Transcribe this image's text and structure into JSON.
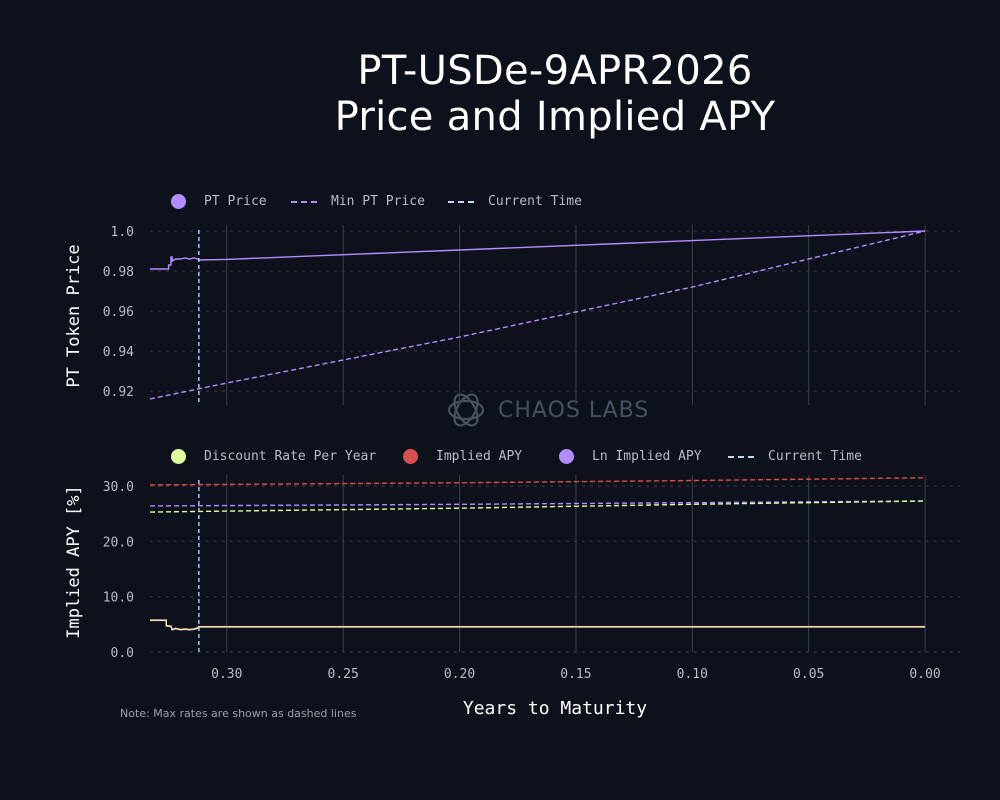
{
  "title_line1": "PT-USDe-9APR2026",
  "title_line2": "Price and Implied APY",
  "watermark": "CHAOS LABS",
  "note": "Note: Max rates are shown as dashed lines",
  "xlabel": "Years to Maturity",
  "top_legend": [
    {
      "label": "PT Price",
      "style": "dot",
      "color": "#b58cff"
    },
    {
      "label": "Min PT Price",
      "style": "dash",
      "color": "#b58cff"
    },
    {
      "label": "Current Time",
      "style": "dash",
      "color": "#c6d8ff"
    }
  ],
  "bottom_legend": [
    {
      "label": "Discount Rate Per Year",
      "style": "dot",
      "color": "#dfff9e"
    },
    {
      "label": "Implied APY",
      "style": "dot",
      "color": "#d94f4f"
    },
    {
      "label": "Ln Implied APY",
      "style": "dot",
      "color": "#b58cff"
    },
    {
      "label": "Current Time",
      "style": "dash",
      "color": "#c6d8ff"
    }
  ],
  "chart_data": [
    {
      "type": "line",
      "ylabel": "PT Token Price",
      "x_reversed": true,
      "xlim": [
        0.333,
        -0.015
      ],
      "ylim": [
        0.913,
        1.003
      ],
      "yticks": [
        0.92,
        0.94,
        0.96,
        0.98,
        1.0
      ],
      "ytick_labels": [
        "0.92",
        "0.94",
        "0.96",
        "0.98",
        "1.0"
      ],
      "xticks": [
        0.3,
        0.25,
        0.2,
        0.15,
        0.1,
        0.05,
        0.0
      ],
      "current_time_x": 0.312,
      "series": [
        {
          "name": "PT Price",
          "style": "solid",
          "color": "#b58cff",
          "points": [
            [
              0.333,
              0.981
            ],
            [
              0.325,
              0.981
            ],
            [
              0.325,
              0.983
            ],
            [
              0.324,
              0.983
            ],
            [
              0.324,
              0.987
            ],
            [
              0.3235,
              0.987
            ],
            [
              0.3235,
              0.985
            ],
            [
              0.322,
              0.986
            ],
            [
              0.32,
              0.986
            ],
            [
              0.318,
              0.9865
            ],
            [
              0.316,
              0.986
            ],
            [
              0.314,
              0.9865
            ],
            [
              0.313,
              0.9862
            ],
            [
              0.312,
              0.9855
            ],
            [
              0.3,
              0.9858
            ],
            [
              0.2,
              0.9905
            ],
            [
              0.1,
              0.9952
            ],
            [
              0.0,
              1.0
            ]
          ]
        },
        {
          "name": "Min PT Price",
          "style": "dashed",
          "color": "#b58cff",
          "points": [
            [
              0.333,
              0.916
            ],
            [
              0.3,
              0.924
            ],
            [
              0.2,
              0.947
            ],
            [
              0.1,
              0.972
            ],
            [
              0.0,
              1.0
            ]
          ]
        }
      ],
      "grid": "dotted horizontal, solid vertical"
    },
    {
      "type": "line",
      "ylabel": "Implied APY [%]",
      "x_reversed": true,
      "xlim": [
        0.333,
        -0.015
      ],
      "ylim": [
        0,
        32
      ],
      "yticks": [
        0,
        10,
        20,
        30
      ],
      "ytick_labels": [
        "0.0",
        "10.0",
        "20.0",
        "30.0"
      ],
      "xticks": [
        0.3,
        0.25,
        0.2,
        0.15,
        0.1,
        0.05,
        0.0
      ],
      "xtick_labels": [
        "0.30",
        "0.25",
        "0.20",
        "0.15",
        "0.10",
        "0.05",
        "0.00"
      ],
      "current_time_x": 0.312,
      "series": [
        {
          "name": "Implied APY",
          "style": "dashed",
          "color": "#d94f4f",
          "points": [
            [
              0.333,
              30.2
            ],
            [
              0.2,
              30.6
            ],
            [
              0.1,
              31.0
            ],
            [
              0.0,
              31.5
            ]
          ]
        },
        {
          "name": "Ln Implied APY",
          "style": "dashed",
          "color": "#b58cff",
          "points": [
            [
              0.333,
              26.4
            ],
            [
              0.2,
              26.7
            ],
            [
              0.1,
              27.0
            ],
            [
              0.0,
              27.3
            ]
          ]
        },
        {
          "name": "Discount Rate Per Year",
          "style": "dashed",
          "color": "#dfff9e",
          "points": [
            [
              0.333,
              25.3
            ],
            [
              0.2,
              26.0
            ],
            [
              0.1,
              26.7
            ],
            [
              0.0,
              27.3
            ]
          ]
        },
        {
          "name": "Implied APY",
          "style": "solid",
          "color": "#e05252",
          "points": [
            [
              0.333,
              5.8
            ],
            [
              0.326,
              5.8
            ],
            [
              0.326,
              4.8
            ],
            [
              0.324,
              4.7
            ],
            [
              0.3235,
              4.1
            ],
            [
              0.322,
              4.3
            ],
            [
              0.32,
              4.1
            ],
            [
              0.318,
              4.2
            ],
            [
              0.316,
              4.1
            ],
            [
              0.314,
              4.2
            ],
            [
              0.3125,
              4.4
            ],
            [
              0.312,
              4.6
            ],
            [
              0.0,
              4.6
            ]
          ]
        },
        {
          "name": "Ln Implied APY",
          "style": "solid",
          "color": "#b58cff",
          "points": [
            [
              0.333,
              5.7
            ],
            [
              0.326,
              5.7
            ],
            [
              0.326,
              4.7
            ],
            [
              0.324,
              4.6
            ],
            [
              0.3235,
              4.0
            ],
            [
              0.322,
              4.2
            ],
            [
              0.32,
              4.0
            ],
            [
              0.318,
              4.1
            ],
            [
              0.316,
              4.0
            ],
            [
              0.314,
              4.1
            ],
            [
              0.3125,
              4.3
            ],
            [
              0.312,
              4.5
            ],
            [
              0.0,
              4.5
            ]
          ]
        },
        {
          "name": "Discount Rate Per Year",
          "style": "solid",
          "color": "#f1e6a8",
          "points": [
            [
              0.333,
              5.75
            ],
            [
              0.326,
              5.75
            ],
            [
              0.326,
              4.75
            ],
            [
              0.324,
              4.65
            ],
            [
              0.3235,
              4.05
            ],
            [
              0.322,
              4.25
            ],
            [
              0.32,
              4.05
            ],
            [
              0.318,
              4.15
            ],
            [
              0.316,
              4.05
            ],
            [
              0.314,
              4.15
            ],
            [
              0.3125,
              4.35
            ],
            [
              0.312,
              4.55
            ],
            [
              0.0,
              4.55
            ]
          ]
        }
      ],
      "grid": "dotted horizontal, solid vertical"
    }
  ]
}
